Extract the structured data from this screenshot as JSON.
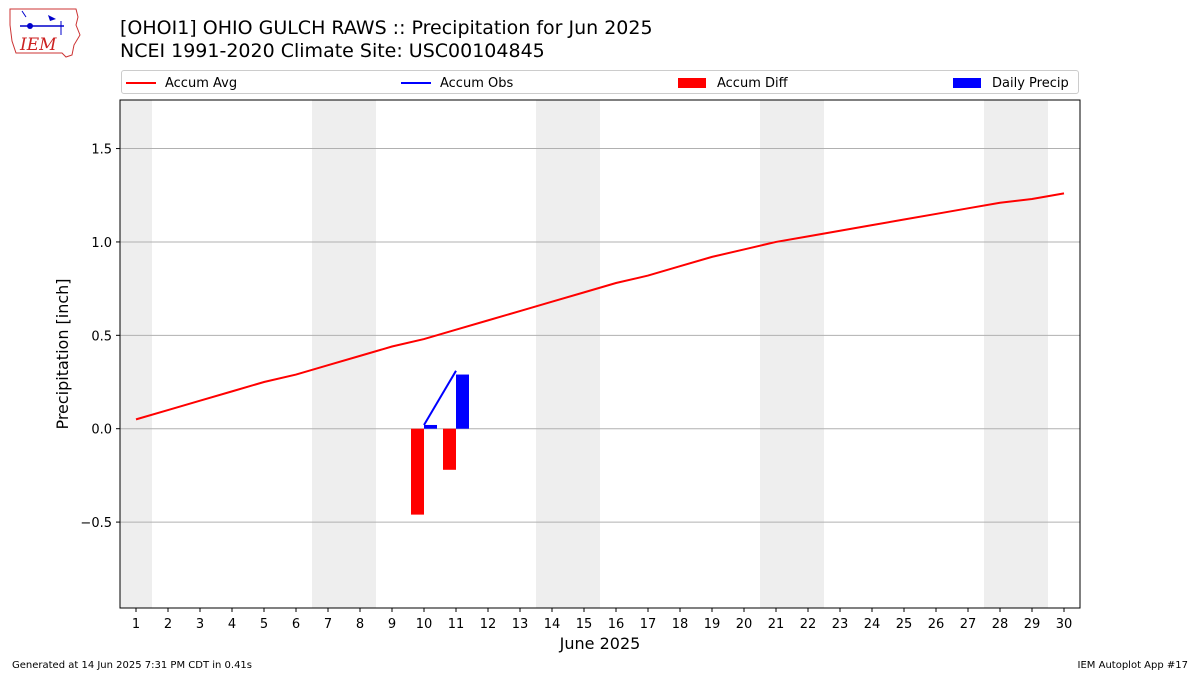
{
  "header": {
    "title_line1": "[OHOI1] OHIO GULCH RAWS :: Precipitation for Jun 2025",
    "title_line2": "NCEI 1991-2020 Climate Site: USC00104845"
  },
  "logo": {
    "text": "IEM"
  },
  "legend": {
    "items": [
      {
        "label": "Accum Avg",
        "kind": "line",
        "color": "#ff0000"
      },
      {
        "label": "Accum Obs",
        "kind": "line",
        "color": "#0000ff"
      },
      {
        "label": "Accum Diff",
        "kind": "bar",
        "color": "#ff0000"
      },
      {
        "label": "Daily Precip",
        "kind": "bar",
        "color": "#0000ff"
      }
    ]
  },
  "footer": {
    "generated": "Generated at 14 Jun 2025 7:31 PM CDT in 0.41s",
    "app": "IEM Autoplot App #17"
  },
  "colors": {
    "avg": "#ff0000",
    "obs": "#0000ff",
    "weekend_band": "#eeeeee",
    "grid": "#b0b0b0"
  },
  "chart_data": {
    "type": "line",
    "xlabel": "June 2025",
    "ylabel": "Precipitation [inch]",
    "xlim": [
      0.5,
      30.5
    ],
    "ylim": [
      -0.96,
      1.76
    ],
    "yticks": [
      -0.5,
      0.0,
      0.5,
      1.0,
      1.5
    ],
    "ytick_labels": [
      "−0.5",
      "0.0",
      "0.5",
      "1.0",
      "1.5"
    ],
    "xticks": [
      1,
      2,
      3,
      4,
      5,
      6,
      7,
      8,
      9,
      10,
      11,
      12,
      13,
      14,
      15,
      16,
      17,
      18,
      19,
      20,
      21,
      22,
      23,
      24,
      25,
      26,
      27,
      28,
      29,
      30
    ],
    "grid": "horizontal",
    "legend_position": "top",
    "weekend_bands": [
      [
        0.5,
        1.5
      ],
      [
        6.5,
        8.5
      ],
      [
        13.5,
        15.5
      ],
      [
        20.5,
        22.5
      ],
      [
        27.5,
        29.5
      ]
    ],
    "series": [
      {
        "name": "Accum Avg",
        "kind": "line",
        "x": [
          1,
          2,
          3,
          4,
          5,
          6,
          7,
          8,
          9,
          10,
          11,
          12,
          13,
          14,
          15,
          16,
          17,
          18,
          19,
          20,
          21,
          22,
          23,
          24,
          25,
          26,
          27,
          28,
          29,
          30
        ],
        "values": [
          0.05,
          0.1,
          0.15,
          0.2,
          0.25,
          0.29,
          0.34,
          0.39,
          0.44,
          0.48,
          0.53,
          0.58,
          0.63,
          0.68,
          0.73,
          0.78,
          0.82,
          0.87,
          0.92,
          0.96,
          1.0,
          1.03,
          1.06,
          1.09,
          1.12,
          1.15,
          1.18,
          1.21,
          1.23,
          1.26
        ]
      },
      {
        "name": "Accum Obs",
        "kind": "line",
        "x": [
          10,
          11
        ],
        "values": [
          0.02,
          0.31
        ]
      },
      {
        "name": "Accum Diff",
        "kind": "bar",
        "x": [
          10,
          11
        ],
        "values": [
          -0.46,
          -0.22
        ]
      },
      {
        "name": "Daily Precip",
        "kind": "bar",
        "x": [
          10,
          11
        ],
        "values": [
          0.02,
          0.29
        ]
      }
    ]
  }
}
